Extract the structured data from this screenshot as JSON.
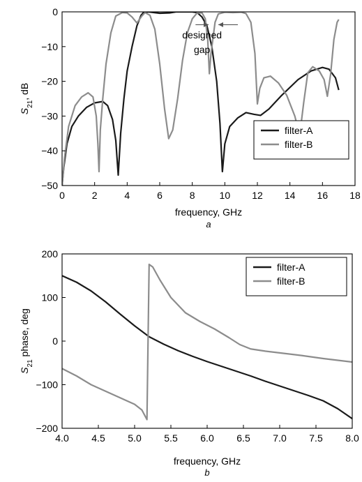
{
  "chart_data": [
    {
      "type": "line",
      "subfigure_label": "a",
      "title": "",
      "xlabel": "frequency, GHz",
      "ylabel_main": "S",
      "ylabel_sub": "21",
      "ylabel_suffix": ", dB",
      "xlim": [
        0,
        18
      ],
      "ylim": [
        -50,
        0
      ],
      "xticks": [
        0,
        2,
        4,
        6,
        8,
        10,
        12,
        14,
        16,
        18
      ],
      "yticks": [
        0,
        -10,
        -20,
        -30,
        -40,
        -50
      ],
      "ytick_labels": [
        "0",
        "−10",
        "−20",
        "−30",
        "−40",
        "−50"
      ],
      "grid": false,
      "legend_position": "bottom-right",
      "annotation": {
        "line1": "designed",
        "line2": "gap",
        "arrow_from_left_x": 8.2,
        "arrow_to_left_x": 9.0,
        "arrow_from_right_x": 10.8,
        "arrow_to_right_x": 9.6,
        "arrow_y": -3.7
      },
      "series": [
        {
          "name": "filter-A",
          "color": "#1a1a1a",
          "points": [
            [
              0.0,
              -50
            ],
            [
              0.1,
              -45
            ],
            [
              0.3,
              -38
            ],
            [
              0.6,
              -33
            ],
            [
              1.0,
              -30
            ],
            [
              1.5,
              -27.5
            ],
            [
              2.0,
              -26.2
            ],
            [
              2.5,
              -25.8
            ],
            [
              2.8,
              -27
            ],
            [
              3.1,
              -31
            ],
            [
              3.3,
              -37
            ],
            [
              3.45,
              -47
            ],
            [
              3.6,
              -35
            ],
            [
              3.8,
              -25
            ],
            [
              4.0,
              -17
            ],
            [
              4.3,
              -10
            ],
            [
              4.6,
              -4
            ],
            [
              4.85,
              -1
            ],
            [
              5.0,
              -0.2
            ],
            [
              5.3,
              0
            ],
            [
              6.0,
              -0.4
            ],
            [
              6.6,
              -0.3
            ],
            [
              7.0,
              0
            ],
            [
              7.5,
              0
            ],
            [
              8.0,
              0
            ],
            [
              8.3,
              -0.2
            ],
            [
              8.6,
              -1.5
            ],
            [
              8.9,
              -4
            ],
            [
              9.2,
              -10
            ],
            [
              9.5,
              -20
            ],
            [
              9.7,
              -32
            ],
            [
              9.85,
              -46
            ],
            [
              10.0,
              -38
            ],
            [
              10.3,
              -33
            ],
            [
              10.8,
              -30.5
            ],
            [
              11.3,
              -29
            ],
            [
              11.8,
              -29.5
            ],
            [
              12.2,
              -29.8
            ],
            [
              12.7,
              -28
            ],
            [
              13.5,
              -24
            ],
            [
              14.5,
              -19.5
            ],
            [
              15.3,
              -17
            ],
            [
              16.0,
              -16
            ],
            [
              16.4,
              -16.5
            ],
            [
              16.8,
              -19
            ],
            [
              17.0,
              -22.5
            ]
          ]
        },
        {
          "name": "filter-B",
          "color": "#8c8c8c",
          "points": [
            [
              0.0,
              -50
            ],
            [
              0.15,
              -42
            ],
            [
              0.4,
              -33
            ],
            [
              0.8,
              -27
            ],
            [
              1.2,
              -24.5
            ],
            [
              1.6,
              -23.3
            ],
            [
              1.9,
              -24.5
            ],
            [
              2.1,
              -30
            ],
            [
              2.2,
              -38
            ],
            [
              2.27,
              -46
            ],
            [
              2.35,
              -34
            ],
            [
              2.5,
              -25
            ],
            [
              2.7,
              -15
            ],
            [
              3.0,
              -6
            ],
            [
              3.3,
              -1.2
            ],
            [
              3.7,
              -0.2
            ],
            [
              4.0,
              -0.3
            ],
            [
              4.3,
              -1.5
            ],
            [
              4.6,
              -3.2
            ],
            [
              4.9,
              -1.2
            ],
            [
              5.1,
              -0.2
            ],
            [
              5.4,
              -1
            ],
            [
              5.7,
              -5
            ],
            [
              6.0,
              -15
            ],
            [
              6.3,
              -28
            ],
            [
              6.55,
              -36.5
            ],
            [
              6.8,
              -34
            ],
            [
              7.1,
              -25
            ],
            [
              7.4,
              -14
            ],
            [
              7.7,
              -6
            ],
            [
              8.0,
              -2
            ],
            [
              8.3,
              -0.3
            ],
            [
              8.6,
              -0.3
            ],
            [
              8.8,
              -2
            ],
            [
              8.95,
              -8
            ],
            [
              9.05,
              -17.8
            ],
            [
              9.15,
              -12
            ],
            [
              9.4,
              -3
            ],
            [
              9.6,
              -0.6
            ],
            [
              10.0,
              -0.1
            ],
            [
              10.5,
              -0.2
            ],
            [
              11.0,
              -0.1
            ],
            [
              11.3,
              -0.5
            ],
            [
              11.6,
              -3
            ],
            [
              11.85,
              -12
            ],
            [
              12.0,
              -26.5
            ],
            [
              12.15,
              -22
            ],
            [
              12.4,
              -19
            ],
            [
              12.8,
              -18.5
            ],
            [
              13.3,
              -20.5
            ],
            [
              13.8,
              -24
            ],
            [
              14.3,
              -30
            ],
            [
              14.6,
              -35.5
            ],
            [
              14.85,
              -26
            ],
            [
              15.1,
              -17.5
            ],
            [
              15.4,
              -15.8
            ],
            [
              15.8,
              -17
            ],
            [
              16.1,
              -19.5
            ],
            [
              16.3,
              -24.3
            ],
            [
              16.5,
              -18
            ],
            [
              16.7,
              -8
            ],
            [
              16.9,
              -3
            ],
            [
              17.0,
              -2.2
            ]
          ]
        }
      ]
    },
    {
      "type": "line",
      "subfigure_label": "b",
      "title": "",
      "xlabel": "frequency, GHz",
      "ylabel_main": "S",
      "ylabel_sub": "21",
      "ylabel_suffix": " phase, deg",
      "xlim": [
        4.0,
        8.0
      ],
      "ylim": [
        -200,
        200
      ],
      "xticks": [
        4.0,
        4.5,
        5.0,
        5.5,
        6.0,
        6.5,
        7.0,
        7.5,
        8.0
      ],
      "xtick_labels": [
        "4.0",
        "4.5",
        "5.0",
        "5.5",
        "6.0",
        "6.5",
        "7.0",
        "7.5",
        "8.0"
      ],
      "yticks": [
        200,
        100,
        0,
        -100,
        -200
      ],
      "ytick_labels": [
        "200",
        "100",
        "0",
        "−100",
        "−200"
      ],
      "grid": false,
      "legend_position": "top-right",
      "series": [
        {
          "name": "filter-A",
          "color": "#1a1a1a",
          "points": [
            [
              4.0,
              150
            ],
            [
              4.2,
              135
            ],
            [
              4.4,
              115
            ],
            [
              4.6,
              90
            ],
            [
              4.8,
              62
            ],
            [
              5.0,
              35
            ],
            [
              5.2,
              10
            ],
            [
              5.4,
              -7
            ],
            [
              5.6,
              -22
            ],
            [
              5.8,
              -35
            ],
            [
              6.0,
              -47
            ],
            [
              6.2,
              -58
            ],
            [
              6.4,
              -69
            ],
            [
              6.6,
              -80
            ],
            [
              6.8,
              -92
            ],
            [
              7.0,
              -103
            ],
            [
              7.2,
              -114
            ],
            [
              7.4,
              -125
            ],
            [
              7.6,
              -137
            ],
            [
              7.8,
              -155
            ],
            [
              8.0,
              -178
            ]
          ]
        },
        {
          "name": "filter-B",
          "color": "#8c8c8c",
          "points": [
            [
              4.0,
              -63
            ],
            [
              4.2,
              -80
            ],
            [
              4.4,
              -100
            ],
            [
              4.6,
              -115
            ],
            [
              4.8,
              -130
            ],
            [
              5.0,
              -145
            ],
            [
              5.1,
              -158
            ],
            [
              5.17,
              -180
            ],
            [
              5.2,
              176
            ],
            [
              5.25,
              170
            ],
            [
              5.35,
              140
            ],
            [
              5.5,
              100
            ],
            [
              5.7,
              65
            ],
            [
              5.9,
              45
            ],
            [
              6.1,
              28
            ],
            [
              6.3,
              8
            ],
            [
              6.45,
              -8
            ],
            [
              6.6,
              -18
            ],
            [
              6.8,
              -23
            ],
            [
              7.0,
              -27
            ],
            [
              7.3,
              -33
            ],
            [
              7.6,
              -40
            ],
            [
              8.0,
              -48
            ]
          ]
        }
      ]
    }
  ]
}
